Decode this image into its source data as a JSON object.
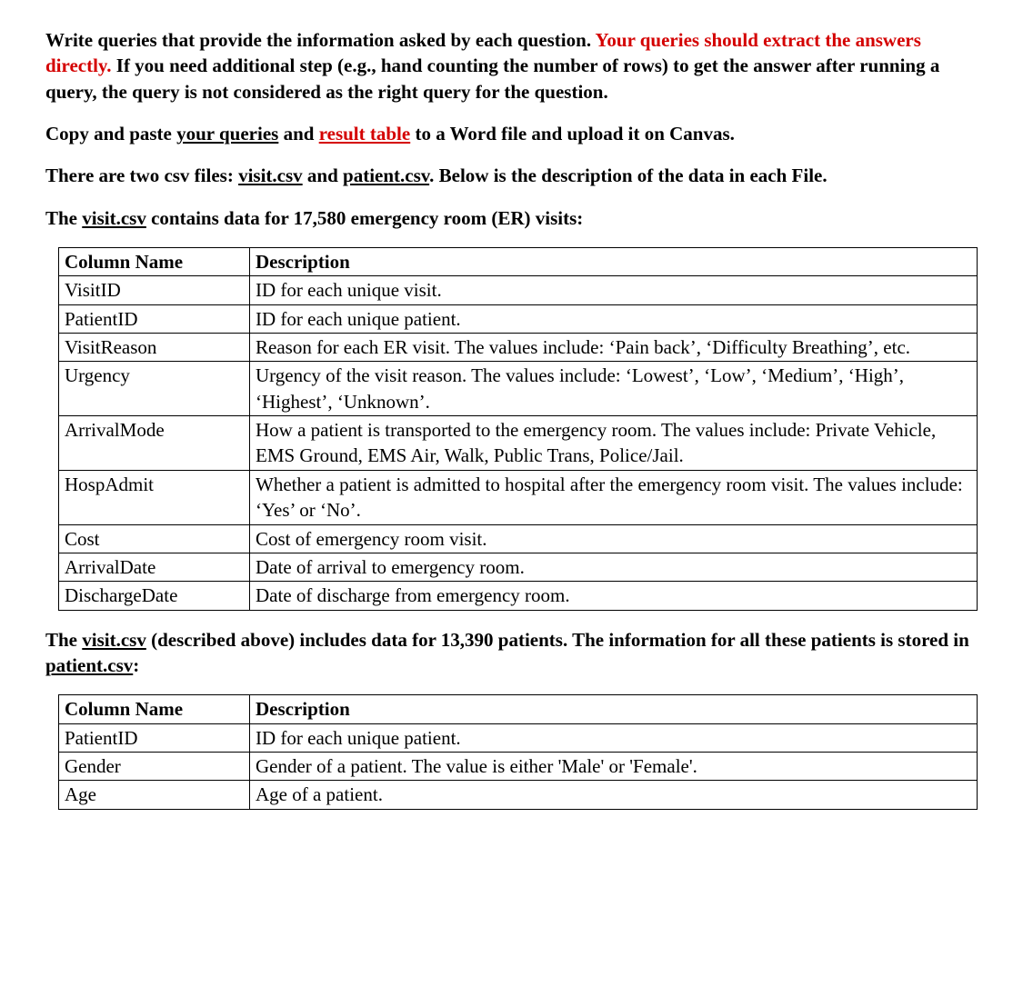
{
  "intro": {
    "p1a": "Write queries that provide the information asked by each question. ",
    "p1b": "Your queries should extract the answers directly.",
    "p1c": " If you need additional step (e.g., hand counting the number of rows) to get the answer after running a query, the query is not considered as the right query for the question.",
    "p2a": "Copy and paste ",
    "p2b": "your queries",
    "p2c": " and ",
    "p2d": "result table",
    "p2e": " to a Word file and upload it on Canvas.",
    "p3a": "There are two csv files: ",
    "p3b": "visit.csv",
    "p3c": " and ",
    "p3d": "patient.csv",
    "p3e": ". Below is the description of the data in each File.",
    "p4a": "The ",
    "p4b": "visit.csv",
    "p4c": " contains data for 17,580 emergency room (ER) visits:"
  },
  "table1": {
    "h1": "Column Name",
    "h2": "Description",
    "r1c1": "VisitID",
    "r1c2": "ID for each unique visit.",
    "r2c1": "PatientID",
    "r2c2": "ID for each unique patient.",
    "r3c1": "VisitReason",
    "r3c2": "Reason for each ER visit. The values include: ‘Pain back’, ‘Difficulty Breathing’, etc.",
    "r4c1": "Urgency",
    "r4c2": "Urgency of the visit reason. The values include: ‘Lowest’, ‘Low’, ‘Medium’, ‘High’, ‘Highest’, ‘Unknown’.",
    "r5c1": "ArrivalMode",
    "r5c2": "How a patient is transported to the emergency room. The values include: Private Vehicle, EMS Ground, EMS Air, Walk, Public Trans, Police/Jail.",
    "r6c1": "HospAdmit",
    "r6c2": "Whether a patient is admitted to hospital after the emergency room visit. The values include: ‘Yes’ or ‘No’.",
    "r7c1": "Cost",
    "r7c2": "Cost of emergency room visit.",
    "r8c1": "ArrivalDate",
    "r8c2": "Date of arrival to emergency room.",
    "r9c1": "DischargeDate",
    "r9c2": "Date of discharge from emergency room."
  },
  "mid": {
    "p1a": "The ",
    "p1b": "visit.csv",
    "p1c": " (described above) includes data for 13,390 patients. The information for all these patients is stored in ",
    "p1d": "patient.csv",
    "p1e": ":"
  },
  "table2": {
    "h1": "Column Name",
    "h2": "Description",
    "r1c1": "PatientID",
    "r1c2": "ID for each unique patient.",
    "r2c1": "Gender",
    "r2c2": "Gender of a patient. The value is either 'Male' or 'Female'.",
    "r3c1": "Age",
    "r3c2": "Age of a patient."
  }
}
